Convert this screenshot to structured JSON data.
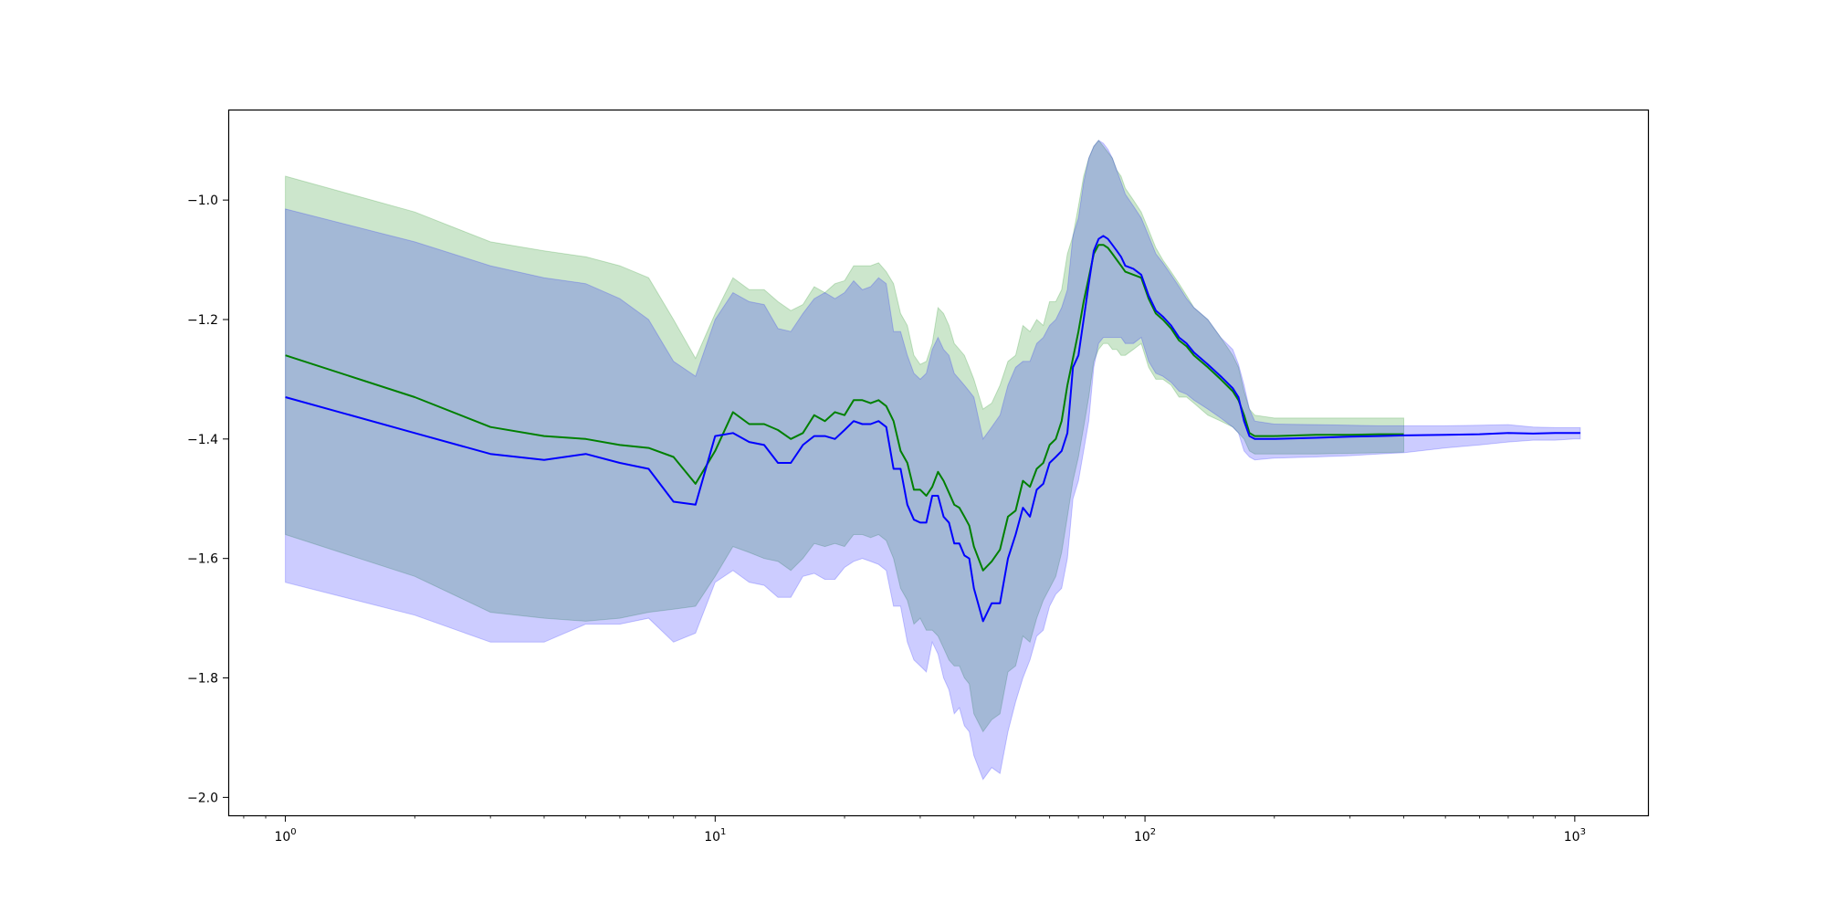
{
  "chart_data": {
    "type": "line",
    "title": "",
    "xlabel": "",
    "ylabel": "",
    "xscale": "log",
    "xlim": [
      0.74,
      1480
    ],
    "ylim": [
      -2.03,
      -0.85
    ],
    "grid": false,
    "legend": "none",
    "x_ticks": [
      {
        "base": "10",
        "exp": "0",
        "value": 1
      },
      {
        "base": "10",
        "exp": "1",
        "value": 10
      },
      {
        "base": "10",
        "exp": "2",
        "value": 100
      },
      {
        "base": "10",
        "exp": "3",
        "value": 1000
      }
    ],
    "y_ticks": [
      {
        "label": "−1.0",
        "value": -1.0
      },
      {
        "label": "−1.2",
        "value": -1.2
      },
      {
        "label": "−1.4",
        "value": -1.4
      },
      {
        "label": "−1.6",
        "value": -1.6
      },
      {
        "label": "−1.8",
        "value": -1.8
      },
      {
        "label": "−2.0",
        "value": -2.0
      }
    ],
    "series": [
      {
        "color": "#008000",
        "band_color": "#008000",
        "band_opacity": 0.2,
        "points": [
          [
            1,
            -1.26,
            -0.96,
            -1.56
          ],
          [
            2,
            -1.33,
            -1.02,
            -1.63
          ],
          [
            3,
            -1.38,
            -1.07,
            -1.69
          ],
          [
            4,
            -1.395,
            -1.085,
            -1.7
          ],
          [
            5,
            -1.4,
            -1.095,
            -1.705
          ],
          [
            6,
            -1.41,
            -1.11,
            -1.7
          ],
          [
            7,
            -1.415,
            -1.13,
            -1.69
          ],
          [
            8,
            -1.43,
            -1.2,
            -1.685
          ],
          [
            9,
            -1.475,
            -1.265,
            -1.68
          ],
          [
            10,
            -1.42,
            -1.19,
            -1.63
          ],
          [
            11,
            -1.355,
            -1.13,
            -1.58
          ],
          [
            12,
            -1.375,
            -1.15,
            -1.59
          ],
          [
            13,
            -1.375,
            -1.15,
            -1.6
          ],
          [
            14,
            -1.385,
            -1.17,
            -1.605
          ],
          [
            15,
            -1.4,
            -1.185,
            -1.62
          ],
          [
            16,
            -1.39,
            -1.175,
            -1.6
          ],
          [
            17,
            -1.36,
            -1.145,
            -1.575
          ],
          [
            18,
            -1.37,
            -1.155,
            -1.58
          ],
          [
            19,
            -1.355,
            -1.14,
            -1.575
          ],
          [
            20,
            -1.36,
            -1.135,
            -1.58
          ],
          [
            21,
            -1.335,
            -1.11,
            -1.56
          ],
          [
            22,
            -1.335,
            -1.11,
            -1.56
          ],
          [
            23,
            -1.34,
            -1.11,
            -1.565
          ],
          [
            24,
            -1.335,
            -1.105,
            -1.56
          ],
          [
            25,
            -1.345,
            -1.12,
            -1.57
          ],
          [
            26,
            -1.37,
            -1.14,
            -1.6
          ],
          [
            27,
            -1.42,
            -1.19,
            -1.65
          ],
          [
            28,
            -1.44,
            -1.21,
            -1.67
          ],
          [
            29,
            -1.485,
            -1.26,
            -1.71
          ],
          [
            30,
            -1.485,
            -1.275,
            -1.7
          ],
          [
            31,
            -1.495,
            -1.27,
            -1.72
          ],
          [
            32,
            -1.48,
            -1.24,
            -1.72
          ],
          [
            33,
            -1.455,
            -1.18,
            -1.73
          ],
          [
            34,
            -1.47,
            -1.19,
            -1.75
          ],
          [
            35,
            -1.49,
            -1.21,
            -1.77
          ],
          [
            36,
            -1.51,
            -1.24,
            -1.78
          ],
          [
            37,
            -1.515,
            -1.25,
            -1.78
          ],
          [
            38,
            -1.53,
            -1.26,
            -1.8
          ],
          [
            39,
            -1.545,
            -1.28,
            -1.81
          ],
          [
            40,
            -1.58,
            -1.3,
            -1.86
          ],
          [
            42,
            -1.62,
            -1.35,
            -1.89
          ],
          [
            44,
            -1.605,
            -1.34,
            -1.87
          ],
          [
            46,
            -1.585,
            -1.31,
            -1.86
          ],
          [
            48,
            -1.53,
            -1.27,
            -1.79
          ],
          [
            50,
            -1.52,
            -1.26,
            -1.78
          ],
          [
            52,
            -1.47,
            -1.21,
            -1.73
          ],
          [
            54,
            -1.48,
            -1.22,
            -1.74
          ],
          [
            56,
            -1.45,
            -1.2,
            -1.7
          ],
          [
            58,
            -1.44,
            -1.21,
            -1.67
          ],
          [
            60,
            -1.41,
            -1.17,
            -1.65
          ],
          [
            62,
            -1.4,
            -1.17,
            -1.63
          ],
          [
            64,
            -1.37,
            -1.15,
            -1.59
          ],
          [
            66,
            -1.31,
            -1.09,
            -1.53
          ],
          [
            68,
            -1.265,
            -1.06,
            -1.47
          ],
          [
            70,
            -1.22,
            -1.01,
            -1.43
          ],
          [
            72,
            -1.17,
            -0.96,
            -1.38
          ],
          [
            74,
            -1.13,
            -0.93,
            -1.33
          ],
          [
            76,
            -1.09,
            -0.91,
            -1.27
          ],
          [
            78,
            -1.075,
            -0.9,
            -1.25
          ],
          [
            80,
            -1.075,
            -0.91,
            -1.24
          ],
          [
            82,
            -1.08,
            -0.92,
            -1.24
          ],
          [
            84,
            -1.09,
            -0.93,
            -1.25
          ],
          [
            86,
            -1.1,
            -0.95,
            -1.25
          ],
          [
            88,
            -1.11,
            -0.96,
            -1.26
          ],
          [
            90,
            -1.12,
            -0.98,
            -1.26
          ],
          [
            94,
            -1.125,
            -1.0,
            -1.25
          ],
          [
            98,
            -1.13,
            -1.02,
            -1.24
          ],
          [
            102,
            -1.165,
            -1.05,
            -1.28
          ],
          [
            106,
            -1.19,
            -1.08,
            -1.3
          ],
          [
            110,
            -1.2,
            -1.1,
            -1.3
          ],
          [
            115,
            -1.215,
            -1.12,
            -1.31
          ],
          [
            120,
            -1.235,
            -1.14,
            -1.33
          ],
          [
            125,
            -1.245,
            -1.16,
            -1.33
          ],
          [
            130,
            -1.26,
            -1.18,
            -1.34
          ],
          [
            140,
            -1.28,
            -1.2,
            -1.36
          ],
          [
            150,
            -1.3,
            -1.23,
            -1.37
          ],
          [
            160,
            -1.32,
            -1.26,
            -1.38
          ],
          [
            165,
            -1.335,
            -1.28,
            -1.39
          ],
          [
            170,
            -1.36,
            -1.32,
            -1.4
          ],
          [
            175,
            -1.39,
            -1.35,
            -1.42
          ],
          [
            180,
            -1.395,
            -1.36,
            -1.425
          ],
          [
            200,
            -1.395,
            -1.365,
            -1.425
          ],
          [
            250,
            -1.393,
            -1.365,
            -1.425
          ],
          [
            300,
            -1.393,
            -1.365,
            -1.424
          ],
          [
            350,
            -1.392,
            -1.365,
            -1.423
          ],
          [
            400,
            -1.392,
            -1.365,
            -1.422
          ]
        ]
      },
      {
        "color": "#0000ff",
        "band_color": "#0000ff",
        "band_opacity": 0.2,
        "points": [
          [
            1,
            -1.33,
            -1.015,
            -1.64
          ],
          [
            2,
            -1.39,
            -1.07,
            -1.695
          ],
          [
            3,
            -1.425,
            -1.11,
            -1.74
          ],
          [
            4,
            -1.435,
            -1.13,
            -1.74
          ],
          [
            5,
            -1.425,
            -1.14,
            -1.71
          ],
          [
            6,
            -1.44,
            -1.165,
            -1.71
          ],
          [
            7,
            -1.45,
            -1.2,
            -1.7
          ],
          [
            8,
            -1.505,
            -1.27,
            -1.74
          ],
          [
            9,
            -1.51,
            -1.295,
            -1.725
          ],
          [
            10,
            -1.395,
            -1.2,
            -1.64
          ],
          [
            11,
            -1.39,
            -1.155,
            -1.62
          ],
          [
            12,
            -1.405,
            -1.17,
            -1.64
          ],
          [
            13,
            -1.41,
            -1.175,
            -1.645
          ],
          [
            14,
            -1.44,
            -1.215,
            -1.665
          ],
          [
            15,
            -1.44,
            -1.22,
            -1.665
          ],
          [
            16,
            -1.41,
            -1.19,
            -1.63
          ],
          [
            17,
            -1.395,
            -1.165,
            -1.625
          ],
          [
            18,
            -1.395,
            -1.155,
            -1.635
          ],
          [
            19,
            -1.4,
            -1.165,
            -1.635
          ],
          [
            20,
            -1.385,
            -1.155,
            -1.615
          ],
          [
            21,
            -1.37,
            -1.135,
            -1.605
          ],
          [
            22,
            -1.375,
            -1.15,
            -1.6
          ],
          [
            23,
            -1.375,
            -1.145,
            -1.605
          ],
          [
            24,
            -1.37,
            -1.13,
            -1.61
          ],
          [
            25,
            -1.38,
            -1.14,
            -1.62
          ],
          [
            26,
            -1.45,
            -1.22,
            -1.68
          ],
          [
            27,
            -1.45,
            -1.22,
            -1.68
          ],
          [
            28,
            -1.51,
            -1.26,
            -1.74
          ],
          [
            29,
            -1.535,
            -1.29,
            -1.77
          ],
          [
            30,
            -1.54,
            -1.3,
            -1.78
          ],
          [
            31,
            -1.54,
            -1.29,
            -1.79
          ],
          [
            32,
            -1.495,
            -1.25,
            -1.74
          ],
          [
            33,
            -1.495,
            -1.23,
            -1.76
          ],
          [
            34,
            -1.53,
            -1.25,
            -1.8
          ],
          [
            35,
            -1.54,
            -1.26,
            -1.82
          ],
          [
            36,
            -1.575,
            -1.29,
            -1.86
          ],
          [
            37,
            -1.575,
            -1.3,
            -1.85
          ],
          [
            38,
            -1.595,
            -1.31,
            -1.88
          ],
          [
            39,
            -1.6,
            -1.32,
            -1.89
          ],
          [
            40,
            -1.65,
            -1.33,
            -1.93
          ],
          [
            42,
            -1.705,
            -1.4,
            -1.97
          ],
          [
            44,
            -1.675,
            -1.38,
            -1.95
          ],
          [
            46,
            -1.675,
            -1.36,
            -1.96
          ],
          [
            48,
            -1.6,
            -1.31,
            -1.89
          ],
          [
            50,
            -1.56,
            -1.28,
            -1.84
          ],
          [
            52,
            -1.515,
            -1.27,
            -1.8
          ],
          [
            54,
            -1.53,
            -1.27,
            -1.77
          ],
          [
            56,
            -1.485,
            -1.24,
            -1.73
          ],
          [
            58,
            -1.475,
            -1.23,
            -1.72
          ],
          [
            60,
            -1.44,
            -1.21,
            -1.68
          ],
          [
            62,
            -1.43,
            -1.2,
            -1.66
          ],
          [
            64,
            -1.42,
            -1.18,
            -1.65
          ],
          [
            66,
            -1.39,
            -1.15,
            -1.6
          ],
          [
            68,
            -1.28,
            -1.06,
            -1.5
          ],
          [
            70,
            -1.26,
            -1.03,
            -1.47
          ],
          [
            72,
            -1.2,
            -0.97,
            -1.42
          ],
          [
            74,
            -1.14,
            -0.93,
            -1.37
          ],
          [
            76,
            -1.085,
            -0.91,
            -1.28
          ],
          [
            78,
            -1.065,
            -0.9,
            -1.24
          ],
          [
            80,
            -1.06,
            -0.905,
            -1.23
          ],
          [
            82,
            -1.065,
            -0.915,
            -1.23
          ],
          [
            84,
            -1.075,
            -0.93,
            -1.23
          ],
          [
            86,
            -1.085,
            -0.95,
            -1.23
          ],
          [
            88,
            -1.095,
            -0.97,
            -1.23
          ],
          [
            90,
            -1.11,
            -0.99,
            -1.24
          ],
          [
            94,
            -1.115,
            -1.01,
            -1.24
          ],
          [
            98,
            -1.125,
            -1.03,
            -1.23
          ],
          [
            102,
            -1.16,
            -1.06,
            -1.27
          ],
          [
            106,
            -1.185,
            -1.09,
            -1.29
          ],
          [
            110,
            -1.195,
            -1.105,
            -1.295
          ],
          [
            115,
            -1.21,
            -1.125,
            -1.305
          ],
          [
            120,
            -1.23,
            -1.145,
            -1.32
          ],
          [
            125,
            -1.24,
            -1.165,
            -1.325
          ],
          [
            130,
            -1.255,
            -1.18,
            -1.335
          ],
          [
            140,
            -1.275,
            -1.2,
            -1.35
          ],
          [
            150,
            -1.295,
            -1.23,
            -1.365
          ],
          [
            160,
            -1.315,
            -1.25,
            -1.38
          ],
          [
            165,
            -1.33,
            -1.275,
            -1.39
          ],
          [
            170,
            -1.37,
            -1.31,
            -1.42
          ],
          [
            175,
            -1.395,
            -1.35,
            -1.43
          ],
          [
            180,
            -1.4,
            -1.37,
            -1.435
          ],
          [
            200,
            -1.4,
            -1.375,
            -1.432
          ],
          [
            250,
            -1.398,
            -1.376,
            -1.43
          ],
          [
            300,
            -1.396,
            -1.377,
            -1.428
          ],
          [
            350,
            -1.395,
            -1.378,
            -1.425
          ],
          [
            400,
            -1.394,
            -1.378,
            -1.423
          ],
          [
            500,
            -1.393,
            -1.378,
            -1.415
          ],
          [
            600,
            -1.392,
            -1.377,
            -1.41
          ],
          [
            700,
            -1.39,
            -1.376,
            -1.405
          ],
          [
            800,
            -1.391,
            -1.38,
            -1.402
          ],
          [
            900,
            -1.39,
            -1.381,
            -1.402
          ],
          [
            1000,
            -1.39,
            -1.381,
            -1.4
          ],
          [
            1030,
            -1.39,
            -1.381,
            -1.4
          ]
        ]
      }
    ]
  }
}
